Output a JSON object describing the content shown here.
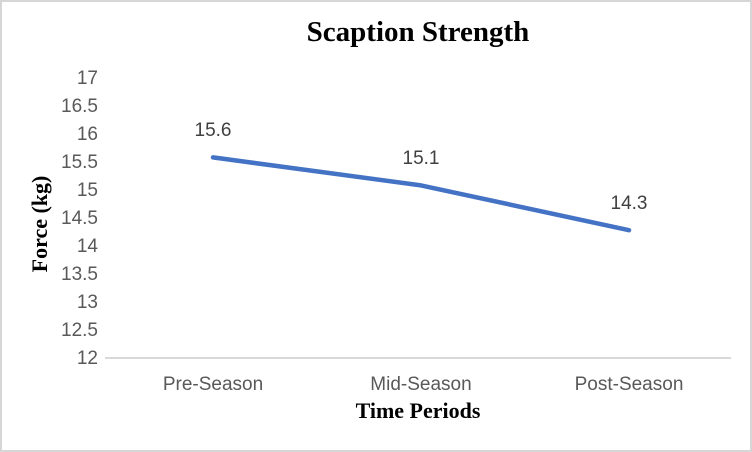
{
  "chart_data": {
    "type": "line",
    "title": "Scaption Strength",
    "xlabel": "Time Periods",
    "ylabel": "Force (kg)",
    "categories": [
      "Pre-Season",
      "Mid-Season",
      "Post-Season"
    ],
    "series": [
      {
        "name": "Scaption Strength",
        "values": [
          15.6,
          15.1,
          14.3
        ]
      }
    ],
    "data_labels": [
      "15.6",
      "15.1",
      "14.3"
    ],
    "ylim": [
      12,
      17
    ],
    "ytick_step": 0.5,
    "ytick_labels": [
      "17",
      "16.5",
      "16",
      "15.5",
      "15",
      "14.5",
      "14",
      "13.5",
      "13",
      "12.5",
      "12"
    ],
    "grid": false,
    "legend": "none",
    "colors": {
      "line": "#4472C4",
      "axis_line": "#D9D9D9",
      "tick_label": "#595959",
      "data_label": "#404040",
      "title": "#000000",
      "frame_border": "#D6D6D6",
      "background": "#FFFFFF"
    }
  }
}
